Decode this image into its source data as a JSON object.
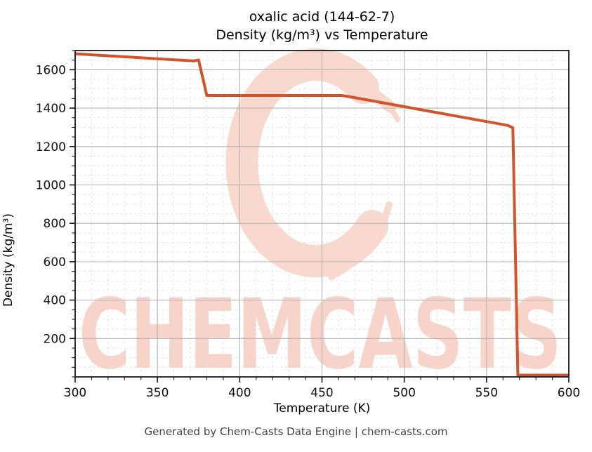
{
  "figure": {
    "title_line1": "oxalic acid (144-62-7)",
    "title_line2": "Density (kg/m³) vs Temperature",
    "footer": "Generated by Chem-Casts Data Engine | chem-casts.com"
  },
  "watermark": {
    "text": "CHEMCASTS",
    "logo_icon": "chemcasts-c-swirl",
    "text_color": "#f8d3c9",
    "logo_color": "#f9d8ce"
  },
  "style_colors": {
    "line": "#d3532a",
    "grid_major": "#b3b3b3",
    "grid_minor": "#dcdcdc",
    "spine": "#1a1a1a",
    "tick_label": "#111111"
  },
  "chart_data": {
    "type": "line",
    "title": "oxalic acid (144-62-7) Density (kg/m³) vs Temperature",
    "xlabel": "Temperature (K)",
    "ylabel": "Density (kg/m³)",
    "xlim": [
      300,
      600
    ],
    "ylim": [
      0,
      1700
    ],
    "x_ticks": [
      300,
      350,
      400,
      450,
      500,
      550,
      600
    ],
    "y_ticks": [
      200,
      400,
      600,
      800,
      1000,
      1200,
      1400,
      1600
    ],
    "x_minor_step": 10,
    "y_minor_step": 50,
    "grid": true,
    "legend_position": "none",
    "series": [
      {
        "name": "Density of oxalic acid",
        "color": "#d3532a",
        "points": [
          [
            300,
            1683
          ],
          [
            336,
            1664
          ],
          [
            372,
            1646
          ],
          [
            375,
            1651
          ],
          [
            380,
            1466
          ],
          [
            420,
            1466
          ],
          [
            462,
            1466
          ],
          [
            467,
            1459
          ],
          [
            515,
            1384
          ],
          [
            563,
            1310
          ],
          [
            566,
            1298
          ],
          [
            569,
            9
          ],
          [
            584,
            9
          ],
          [
            600,
            9
          ]
        ]
      }
    ]
  }
}
